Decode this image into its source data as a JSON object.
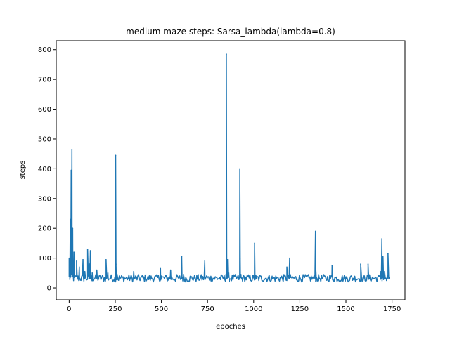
{
  "chart_data": {
    "type": "line",
    "title": "medium maze steps: Sarsa_lambda(lambda=0.8)",
    "xlabel": "epoches",
    "ylabel": "steps",
    "xlim": [
      -70,
      1820
    ],
    "ylim": [
      -40,
      830
    ],
    "xticks": [
      0,
      250,
      500,
      750,
      1000,
      1250,
      1500,
      1750
    ],
    "yticks": [
      0,
      100,
      200,
      300,
      400,
      500,
      600,
      700,
      800
    ],
    "grid": false,
    "legend": "none",
    "series": [
      {
        "color": "#1f77b4",
        "baseline": {
          "x_start": 0,
          "x_end": 1735,
          "step": 4,
          "low": 20,
          "high": 45
        },
        "x": [
          0,
          3,
          6,
          9,
          11,
          13,
          15,
          17,
          19,
          22,
          26,
          30,
          40,
          45,
          55,
          60,
          75,
          80,
          85,
          100,
          105,
          110,
          115,
          120,
          125,
          150,
          160,
          200,
          205,
          210,
          250,
          252,
          254,
          256,
          260,
          300,
          350,
          480,
          495,
          500,
          550,
          600,
          610,
          615,
          620,
          700,
          735,
          740,
          745,
          800,
          850,
          852,
          854,
          856,
          858,
          860,
          865,
          870,
          900,
          925,
          927,
          929,
          931,
          935,
          1000,
          1005,
          1007,
          1009,
          1015,
          1100,
          1180,
          1190,
          1195,
          1200,
          1300,
          1335,
          1337,
          1339,
          1345,
          1400,
          1425,
          1430,
          1500,
          1580,
          1585,
          1620,
          1625,
          1690,
          1695,
          1698,
          1701,
          1705,
          1710,
          1715,
          1720,
          1725,
          1728,
          1732,
          1735
        ],
        "values": [
          100,
          40,
          230,
          60,
          395,
          100,
          465,
          50,
          200,
          45,
          120,
          35,
          90,
          40,
          70,
          30,
          95,
          35,
          55,
          130,
          40,
          80,
          125,
          40,
          50,
          60,
          35,
          95,
          35,
          50,
          40,
          445,
          80,
          35,
          45,
          30,
          55,
          35,
          65,
          40,
          60,
          35,
          105,
          35,
          45,
          35,
          90,
          35,
          40,
          35,
          45,
          785,
          90,
          30,
          95,
          35,
          50,
          30,
          40,
          400,
          100,
          35,
          45,
          30,
          35,
          150,
          40,
          35,
          30,
          30,
          70,
          35,
          100,
          35,
          35,
          190,
          60,
          35,
          30,
          35,
          75,
          30,
          30,
          80,
          30,
          80,
          30,
          55,
          165,
          60,
          105,
          30,
          55,
          30,
          25,
          30,
          115,
          30,
          35
        ]
      }
    ]
  }
}
